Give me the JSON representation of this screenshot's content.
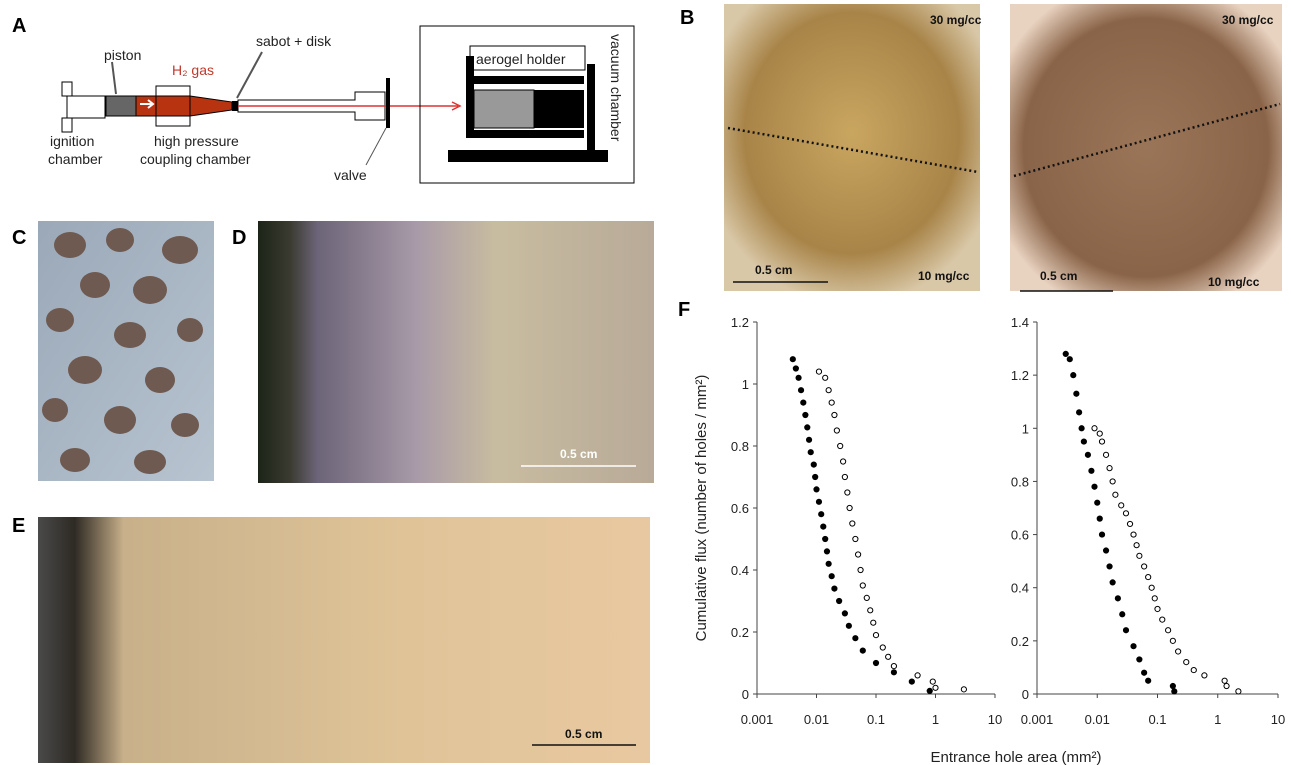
{
  "labels": {
    "a": "A",
    "b": "B",
    "c": "C",
    "d": "D",
    "e": "E",
    "f": "F"
  },
  "panel_a": {
    "ignition_chamber": [
      "ignition",
      "chamber"
    ],
    "piston": "piston",
    "gas": "H₂ gas",
    "sabot": "sabot + disk",
    "coupling": [
      "high pressure",
      "coupling chamber"
    ],
    "valve": "valve",
    "holder": "aerogel holder",
    "vacuum": "vacuum chamber"
  },
  "panel_b": {
    "left": {
      "top": "30 mg/cc",
      "bottom": "10 mg/cc",
      "scale": "0.5 cm"
    },
    "right": {
      "top": "30 mg/cc",
      "bottom": "10 mg/cc",
      "scale": "0.5 cm"
    }
  },
  "panel_d": {
    "scale": "0.5 cm"
  },
  "panel_e": {
    "scale": "0.5 cm"
  },
  "chart_data": [
    {
      "type": "scatter",
      "ylabel": "Cumulative flux  (number of holes / mm²)",
      "xlabel": "Entrance hole area (mm²)",
      "xlog": true,
      "xlim": [
        0.001,
        10
      ],
      "xticks": [
        0.001,
        0.01,
        0.1,
        1,
        10
      ],
      "ylim": [
        0,
        1.2
      ],
      "yticks": [
        0,
        0.2,
        0.4,
        0.6,
        0.8,
        1,
        1.2
      ],
      "series": [
        {
          "color": "#000000",
          "filled": true,
          "x": [
            0.004,
            0.0045,
            0.005,
            0.0055,
            0.006,
            0.0065,
            0.007,
            0.0075,
            0.008,
            0.009,
            0.0095,
            0.01,
            0.011,
            0.012,
            0.013,
            0.014,
            0.015,
            0.016,
            0.018,
            0.02,
            0.024,
            0.03,
            0.035,
            0.045,
            0.06,
            0.1,
            0.2,
            0.4,
            0.8
          ],
          "values": [
            1.08,
            1.05,
            1.02,
            0.98,
            0.94,
            0.9,
            0.86,
            0.82,
            0.78,
            0.74,
            0.7,
            0.66,
            0.62,
            0.58,
            0.54,
            0.5,
            0.46,
            0.42,
            0.38,
            0.34,
            0.3,
            0.26,
            0.22,
            0.18,
            0.14,
            0.1,
            0.07,
            0.04,
            0.01
          ]
        },
        {
          "color": "#000000",
          "filled": false,
          "x": [
            0.011,
            0.014,
            0.016,
            0.018,
            0.02,
            0.022,
            0.025,
            0.028,
            0.03,
            0.033,
            0.036,
            0.04,
            0.045,
            0.05,
            0.055,
            0.06,
            0.07,
            0.08,
            0.09,
            0.1,
            0.13,
            0.16,
            0.2,
            0.5,
            0.9,
            1,
            3
          ],
          "values": [
            1.04,
            1.02,
            0.98,
            0.94,
            0.9,
            0.85,
            0.8,
            0.75,
            0.7,
            0.65,
            0.6,
            0.55,
            0.5,
            0.45,
            0.4,
            0.35,
            0.31,
            0.27,
            0.23,
            0.19,
            0.15,
            0.12,
            0.09,
            0.06,
            0.04,
            0.02,
            0.015
          ]
        }
      ]
    },
    {
      "type": "scatter",
      "xlog": true,
      "xlim": [
        0.001,
        10
      ],
      "xticks": [
        0.001,
        0.01,
        0.1,
        1,
        10
      ],
      "ylim": [
        0,
        1.4
      ],
      "yticks": [
        0,
        0.2,
        0.4,
        0.6,
        0.8,
        1,
        1.2,
        1.4
      ],
      "series": [
        {
          "color": "#000000",
          "filled": true,
          "x": [
            0.003,
            0.0035,
            0.004,
            0.0045,
            0.005,
            0.0055,
            0.006,
            0.007,
            0.008,
            0.009,
            0.01,
            0.011,
            0.012,
            0.014,
            0.016,
            0.018,
            0.022,
            0.026,
            0.03,
            0.04,
            0.05,
            0.06,
            0.07,
            0.18,
            0.19
          ],
          "values": [
            1.28,
            1.26,
            1.2,
            1.13,
            1.06,
            1.0,
            0.95,
            0.9,
            0.84,
            0.78,
            0.72,
            0.66,
            0.6,
            0.54,
            0.48,
            0.42,
            0.36,
            0.3,
            0.24,
            0.18,
            0.13,
            0.08,
            0.05,
            0.03,
            0.01
          ]
        },
        {
          "color": "#000000",
          "filled": false,
          "x": [
            0.009,
            0.011,
            0.012,
            0.014,
            0.016,
            0.018,
            0.02,
            0.025,
            0.03,
            0.035,
            0.04,
            0.045,
            0.05,
            0.06,
            0.07,
            0.08,
            0.09,
            0.1,
            0.12,
            0.15,
            0.18,
            0.22,
            0.3,
            0.4,
            0.6,
            1.3,
            1.4,
            2.2
          ],
          "values": [
            1.0,
            0.98,
            0.95,
            0.9,
            0.85,
            0.8,
            0.75,
            0.71,
            0.68,
            0.64,
            0.6,
            0.56,
            0.52,
            0.48,
            0.44,
            0.4,
            0.36,
            0.32,
            0.28,
            0.24,
            0.2,
            0.16,
            0.12,
            0.09,
            0.07,
            0.05,
            0.03,
            0.01
          ]
        }
      ]
    }
  ]
}
